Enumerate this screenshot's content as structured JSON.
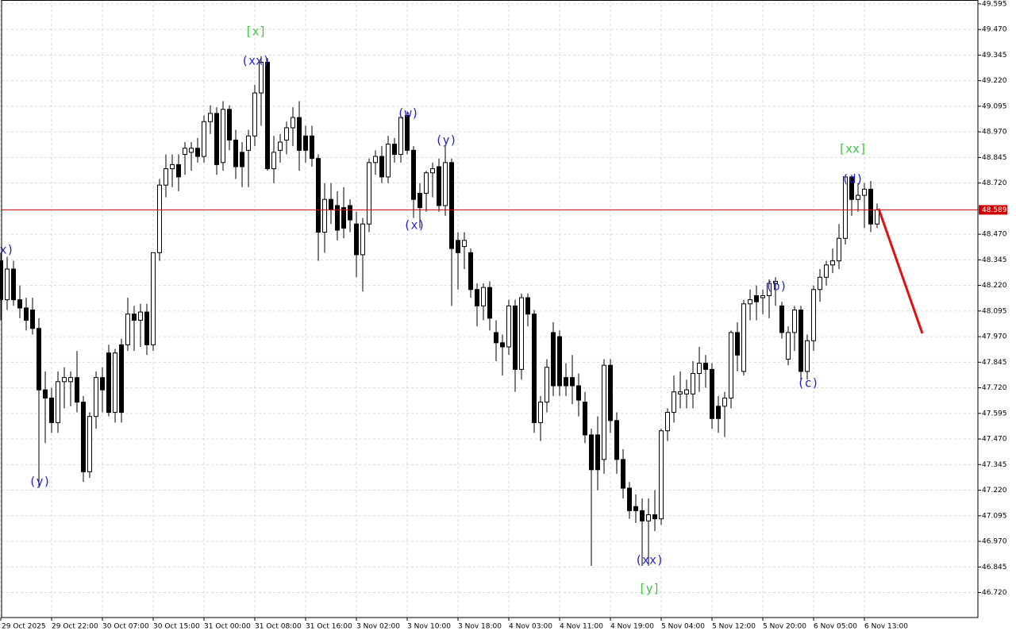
{
  "chart_data": {
    "type": "candlestick",
    "up_color": "#ffffff",
    "down_color": "#000000",
    "grid": true,
    "price_line": 48.589,
    "price_line_color": "#cc0000",
    "ylim": [
      46.598,
      49.614
    ],
    "yticks": [
      49.595,
      {
        "value": 49.47,
        "label": "49.470"
      },
      49.345,
      {
        "value": 49.22,
        "label": "49.220"
      },
      49.095,
      {
        "value": 48.97,
        "label": "48.970"
      },
      48.845,
      {
        "value": 48.72,
        "label": "48.720"
      },
      {
        "value": 48.47,
        "label": "48.470"
      },
      48.345,
      {
        "value": 48.22,
        "label": "48.220"
      },
      48.095,
      {
        "value": 47.97,
        "label": "47.970"
      },
      47.845,
      {
        "value": 47.72,
        "label": "47.720"
      },
      47.595,
      {
        "value": 47.47,
        "label": "47.470"
      },
      47.345,
      {
        "value": 47.22,
        "label": "47.220"
      },
      47.095,
      {
        "value": 46.97,
        "label": "46.970"
      },
      46.845,
      {
        "value": 46.72,
        "label": "46.720"
      }
    ],
    "categories": [
      "29 Oct 2025",
      null,
      null,
      null,
      null,
      null,
      null,
      null,
      "29 Oct 22:00",
      null,
      null,
      null,
      null,
      null,
      null,
      null,
      "30 Oct 07:00",
      null,
      null,
      null,
      null,
      null,
      null,
      null,
      "30 Oct 15:00",
      null,
      null,
      null,
      null,
      null,
      null,
      null,
      "31 Oct 00:00",
      null,
      null,
      null,
      null,
      null,
      null,
      null,
      "31 Oct 08:00",
      null,
      null,
      null,
      null,
      null,
      null,
      null,
      "31 Oct 16:00",
      null,
      null,
      null,
      null,
      null,
      null,
      null,
      "3 Nov 02:00",
      null,
      null,
      null,
      null,
      null,
      null,
      null,
      "3 Nov 10:00",
      null,
      null,
      null,
      null,
      null,
      null,
      null,
      "3 Nov 18:00",
      null,
      null,
      null,
      null,
      null,
      null,
      null,
      "4 Nov 03:00",
      null,
      null,
      null,
      null,
      null,
      null,
      null,
      "4 Nov 11:00",
      null,
      null,
      null,
      null,
      null,
      null,
      null,
      "4 Nov 19:00",
      null,
      null,
      null,
      null,
      null,
      null,
      null,
      "5 Nov 04:00",
      null,
      null,
      null,
      null,
      null,
      null,
      null,
      "5 Nov 12:00",
      null,
      null,
      null,
      null,
      null,
      null,
      null,
      "5 Nov 20:00",
      null,
      null,
      null,
      null,
      null,
      null,
      null,
      "6 Nov 05:00",
      null,
      null,
      null,
      null,
      null,
      null,
      null,
      "6 Nov 13:00",
      null,
      null
    ],
    "ohlc": [
      [
        48.34,
        48.38,
        48.05,
        48.15
      ],
      [
        48.15,
        48.36,
        48.1,
        48.3
      ],
      [
        48.3,
        48.34,
        48.12,
        48.15
      ],
      [
        48.15,
        48.22,
        48.06,
        48.11
      ],
      [
        48.11,
        48.16,
        48.0,
        48.05
      ],
      [
        48.1,
        48.16,
        47.98,
        48.01
      ],
      [
        48.01,
        48.06,
        47.24,
        47.71
      ],
      [
        47.71,
        47.8,
        47.45,
        47.67
      ],
      [
        47.67,
        47.72,
        47.5,
        47.55
      ],
      [
        47.55,
        47.8,
        47.5,
        47.75
      ],
      [
        47.75,
        47.82,
        47.62,
        47.77
      ],
      [
        47.75,
        47.8,
        47.63,
        47.77
      ],
      [
        47.77,
        47.9,
        47.6,
        47.65
      ],
      [
        47.65,
        47.68,
        47.26,
        47.31
      ],
      [
        47.31,
        47.6,
        47.28,
        47.58
      ],
      [
        47.58,
        47.8,
        47.52,
        47.77
      ],
      [
        47.77,
        47.82,
        47.6,
        47.71
      ],
      [
        47.89,
        47.93,
        47.58,
        47.6
      ],
      [
        47.6,
        47.91,
        47.55,
        47.89
      ],
      [
        47.93,
        47.96,
        47.55,
        47.6
      ],
      [
        47.93,
        48.16,
        47.9,
        48.08
      ],
      [
        48.08,
        48.12,
        47.9,
        48.05
      ],
      [
        48.05,
        48.13,
        47.92,
        48.09
      ],
      [
        48.09,
        48.13,
        47.88,
        47.93
      ],
      [
        47.93,
        48.38,
        47.9,
        48.38
      ],
      [
        48.38,
        48.74,
        48.34,
        48.71
      ],
      [
        48.71,
        48.86,
        48.65,
        48.79
      ],
      [
        48.79,
        48.86,
        48.7,
        48.81
      ],
      [
        48.81,
        48.86,
        48.68,
        48.75
      ],
      [
        48.86,
        48.92,
        48.76,
        48.89
      ],
      [
        48.87,
        48.92,
        48.78,
        48.89
      ],
      [
        48.89,
        48.94,
        48.82,
        48.85
      ],
      [
        48.85,
        49.05,
        48.82,
        49.02
      ],
      [
        49.02,
        49.1,
        48.96,
        49.06
      ],
      [
        49.06,
        49.09,
        48.76,
        48.81
      ],
      [
        48.82,
        49.12,
        48.78,
        49.08
      ],
      [
        49.08,
        49.1,
        48.88,
        48.93
      ],
      [
        48.93,
        48.98,
        48.74,
        48.8
      ],
      [
        48.87,
        48.92,
        48.7,
        48.8
      ],
      [
        48.88,
        48.98,
        48.7,
        48.95
      ],
      [
        48.95,
        49.2,
        48.9,
        49.16
      ],
      [
        49.16,
        49.34,
        49.0,
        49.31
      ],
      [
        49.31,
        49.33,
        48.78,
        48.79
      ],
      [
        48.79,
        48.95,
        48.72,
        48.87
      ],
      [
        48.88,
        48.96,
        48.82,
        48.92
      ],
      [
        48.93,
        49.02,
        48.86,
        48.99
      ],
      [
        48.99,
        49.09,
        48.9,
        49.04
      ],
      [
        49.04,
        49.12,
        48.78,
        48.88
      ],
      [
        48.95,
        49.0,
        48.82,
        48.88
      ],
      [
        48.95,
        49.0,
        48.8,
        48.84
      ],
      [
        48.84,
        48.86,
        48.34,
        48.48
      ],
      [
        48.48,
        48.72,
        48.38,
        48.64
      ],
      [
        48.64,
        48.72,
        48.52,
        48.59
      ],
      [
        48.61,
        48.68,
        48.44,
        48.49
      ],
      [
        48.6,
        48.7,
        48.45,
        48.5
      ],
      [
        48.61,
        48.64,
        48.48,
        48.54
      ],
      [
        48.52,
        48.58,
        48.26,
        48.37
      ],
      [
        48.37,
        48.55,
        48.19,
        48.52
      ],
      [
        48.52,
        48.84,
        48.48,
        48.82
      ],
      [
        48.82,
        48.88,
        48.76,
        48.85
      ],
      [
        48.85,
        48.9,
        48.72,
        48.75
      ],
      [
        48.75,
        48.95,
        48.72,
        48.91
      ],
      [
        48.91,
        48.94,
        48.82,
        48.86
      ],
      [
        48.86,
        49.05,
        48.82,
        49.04
      ],
      [
        49.05,
        49.07,
        48.86,
        48.88
      ],
      [
        48.88,
        48.9,
        48.55,
        48.64
      ],
      [
        48.67,
        48.72,
        48.5,
        48.6
      ],
      [
        48.67,
        48.78,
        48.58,
        48.77
      ],
      [
        48.77,
        48.82,
        48.65,
        48.79
      ],
      [
        48.8,
        48.84,
        48.58,
        48.61
      ],
      [
        48.61,
        48.9,
        48.56,
        48.82
      ],
      [
        48.82,
        48.84,
        48.12,
        48.4
      ],
      [
        48.44,
        48.48,
        48.2,
        48.38
      ],
      [
        48.41,
        48.48,
        48.3,
        48.44
      ],
      [
        48.38,
        48.4,
        48.16,
        48.2
      ],
      [
        48.2,
        48.23,
        48.02,
        48.12
      ],
      [
        48.12,
        48.23,
        48.05,
        48.21
      ],
      [
        48.21,
        48.24,
        48.0,
        48.06
      ],
      [
        47.99,
        48.05,
        47.85,
        47.94
      ],
      [
        47.94,
        47.98,
        47.78,
        47.92
      ],
      [
        47.92,
        48.15,
        47.88,
        48.12
      ],
      [
        48.12,
        48.15,
        47.7,
        47.81
      ],
      [
        47.81,
        48.18,
        47.76,
        48.16
      ],
      [
        48.16,
        48.18,
        48.02,
        48.08
      ],
      [
        48.08,
        48.1,
        47.5,
        47.55
      ],
      [
        47.55,
        47.68,
        47.46,
        47.65
      ],
      [
        47.65,
        47.86,
        47.6,
        47.82
      ],
      [
        47.99,
        48.04,
        47.68,
        47.73
      ],
      [
        47.97,
        48.0,
        47.68,
        47.73
      ],
      [
        47.77,
        47.84,
        47.68,
        47.73
      ],
      [
        47.77,
        47.88,
        47.64,
        47.73
      ],
      [
        47.73,
        47.79,
        47.58,
        47.66
      ],
      [
        47.65,
        47.7,
        47.45,
        47.49
      ],
      [
        47.49,
        47.52,
        46.85,
        47.32
      ],
      [
        47.49,
        47.58,
        47.22,
        47.32
      ],
      [
        47.37,
        47.86,
        47.3,
        47.83
      ],
      [
        47.83,
        47.86,
        47.5,
        47.56
      ],
      [
        47.56,
        47.6,
        47.3,
        47.37
      ],
      [
        47.37,
        47.42,
        47.18,
        47.23
      ],
      [
        47.23,
        47.26,
        47.08,
        47.12
      ],
      [
        47.14,
        47.2,
        47.06,
        47.12
      ],
      [
        47.12,
        47.18,
        46.85,
        47.07
      ],
      [
        47.07,
        47.18,
        46.85,
        47.1
      ],
      [
        47.1,
        47.22,
        47.02,
        47.08
      ],
      [
        47.08,
        47.52,
        47.05,
        47.51
      ],
      [
        47.51,
        47.62,
        47.46,
        47.6
      ],
      [
        47.6,
        47.78,
        47.55,
        47.7
      ],
      [
        47.69,
        47.8,
        47.62,
        47.7
      ],
      [
        47.69,
        47.76,
        47.62,
        47.71
      ],
      [
        47.69,
        47.85,
        47.62,
        47.79
      ],
      [
        47.79,
        47.92,
        47.7,
        47.84
      ],
      [
        47.84,
        47.88,
        47.72,
        47.81
      ],
      [
        47.81,
        47.84,
        47.52,
        47.57
      ],
      [
        47.63,
        47.68,
        47.5,
        47.57
      ],
      [
        47.63,
        47.7,
        47.48,
        47.67
      ],
      [
        47.67,
        48.0,
        47.62,
        47.99
      ],
      [
        47.99,
        48.04,
        47.8,
        47.88
      ],
      [
        47.8,
        48.15,
        47.78,
        48.13
      ],
      [
        48.13,
        48.2,
        48.05,
        48.15
      ],
      [
        48.17,
        48.22,
        48.05,
        48.14
      ],
      [
        48.16,
        48.2,
        48.08,
        48.17
      ],
      [
        48.17,
        48.25,
        48.06,
        48.23
      ],
      [
        48.23,
        48.26,
        48.12,
        48.24
      ],
      [
        48.12,
        48.14,
        47.96,
        47.99
      ],
      [
        47.86,
        48.02,
        47.83,
        47.99
      ],
      [
        47.99,
        48.12,
        47.9,
        48.1
      ],
      [
        48.1,
        48.12,
        47.76,
        47.8
      ],
      [
        47.8,
        47.98,
        47.76,
        47.95
      ],
      [
        47.95,
        48.22,
        47.9,
        48.2
      ],
      [
        48.2,
        48.3,
        48.14,
        48.26
      ],
      [
        48.26,
        48.34,
        48.22,
        48.32
      ],
      [
        48.32,
        48.4,
        48.28,
        48.34
      ],
      [
        48.34,
        48.52,
        48.3,
        48.45
      ],
      [
        48.45,
        48.76,
        48.42,
        48.75
      ],
      [
        48.75,
        48.76,
        48.56,
        48.64
      ],
      [
        48.64,
        48.72,
        48.58,
        48.66
      ],
      [
        48.66,
        48.72,
        48.5,
        48.69
      ],
      [
        48.69,
        48.73,
        48.48,
        48.52
      ],
      [
        48.52,
        48.62,
        48.5,
        48.589
      ]
    ],
    "annotations": [
      {
        "text": "(x)",
        "color": "#1f1fd0"
      },
      {
        "text": "(y)",
        "color": "#1f1fd0"
      },
      {
        "text": "[x]",
        "color": "#3cc83c"
      },
      {
        "text": "(xx)",
        "color": "#1f1fd0"
      },
      {
        "text": "(w)",
        "color": "#1f1fd0"
      },
      {
        "text": "(x)",
        "color": "#1f1fd0"
      },
      {
        "text": "(y)",
        "color": "#1f1fd0"
      },
      {
        "text": "(xx)",
        "color": "#1f1fd0"
      },
      {
        "text": "[y]",
        "color": "#3cc83c"
      },
      {
        "text": "(b)",
        "color": "#1f1fd0"
      },
      {
        "text": "(c)",
        "color": "#1f1fd0"
      },
      {
        "text": "(d)",
        "color": "#1f1fd0"
      },
      {
        "text": "[xx]",
        "color": "#3cc83c"
      }
    ]
  }
}
